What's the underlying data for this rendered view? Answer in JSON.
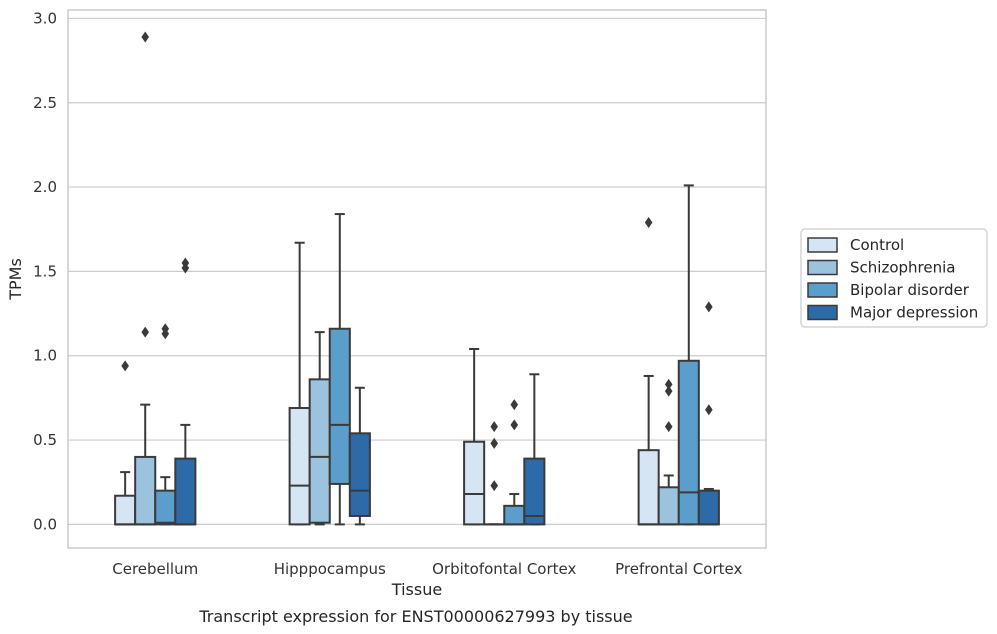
{
  "caption": "Transcript expression for ENST00000627993 by tissue",
  "chart_data": {
    "type": "box",
    "title": "",
    "xlabel": "Tissue",
    "ylabel": "TPMs",
    "ylim": [
      -0.14,
      3.05
    ],
    "yticks": [
      "0.0",
      "0.5",
      "1.0",
      "1.5",
      "2.0",
      "2.5",
      "3.0"
    ],
    "grid": true,
    "legend_position": "right",
    "categories": [
      "Cerebellum",
      "Hipppocampus",
      "Orbitofontal Cortex",
      "Prefrontal Cortex"
    ],
    "series": [
      {
        "name": "Control",
        "color": "#d6e5f4",
        "boxes": [
          {
            "whislo": 0.0,
            "q1": 0.0,
            "med": 0.0,
            "q3": 0.17,
            "whishi": 0.31,
            "fliers": [
              0.94
            ]
          },
          {
            "whislo": 0.0,
            "q1": 0.0,
            "med": 0.23,
            "q3": 0.69,
            "whishi": 1.67,
            "fliers": []
          },
          {
            "whislo": 0.0,
            "q1": 0.0,
            "med": 0.18,
            "q3": 0.49,
            "whishi": 1.04,
            "fliers": []
          },
          {
            "whislo": 0.0,
            "q1": 0.0,
            "med": 0.0,
            "q3": 0.44,
            "whishi": 0.88,
            "fliers": [
              1.79
            ]
          }
        ]
      },
      {
        "name": "Schizophrenia",
        "color": "#9cc3de",
        "boxes": [
          {
            "whislo": 0.0,
            "q1": 0.0,
            "med": 0.0,
            "q3": 0.4,
            "whishi": 0.71,
            "fliers": [
              1.14,
              2.89
            ]
          },
          {
            "whislo": 0.0,
            "q1": 0.01,
            "med": 0.4,
            "q3": 0.86,
            "whishi": 1.14,
            "fliers": []
          },
          {
            "whislo": 0.0,
            "q1": 0.0,
            "med": 0.0,
            "q3": 0.0,
            "whishi": 0.0,
            "fliers": [
              0.23,
              0.48,
              0.58
            ]
          },
          {
            "whislo": 0.0,
            "q1": 0.0,
            "med": 0.0,
            "q3": 0.22,
            "whishi": 0.29,
            "fliers": [
              0.58,
              0.79,
              0.83
            ]
          }
        ]
      },
      {
        "name": "Bipolar disorder",
        "color": "#5b9dcb",
        "boxes": [
          {
            "whislo": 0.0,
            "q1": 0.0,
            "med": 0.01,
            "q3": 0.2,
            "whishi": 0.28,
            "fliers": [
              1.13,
              1.16
            ]
          },
          {
            "whislo": 0.0,
            "q1": 0.24,
            "med": 0.59,
            "q3": 1.16,
            "whishi": 1.84,
            "fliers": []
          },
          {
            "whislo": 0.0,
            "q1": 0.0,
            "med": 0.0,
            "q3": 0.11,
            "whishi": 0.18,
            "fliers": [
              0.59,
              0.71
            ]
          },
          {
            "whislo": 0.0,
            "q1": 0.0,
            "med": 0.19,
            "q3": 0.97,
            "whishi": 2.01,
            "fliers": []
          }
        ]
      },
      {
        "name": "Major depression",
        "color": "#2c6ba8",
        "boxes": [
          {
            "whislo": 0.0,
            "q1": 0.0,
            "med": 0.0,
            "q3": 0.39,
            "whishi": 0.59,
            "fliers": [
              1.52,
              1.55
            ]
          },
          {
            "whislo": 0.0,
            "q1": 0.05,
            "med": 0.2,
            "q3": 0.54,
            "whishi": 0.81,
            "fliers": []
          },
          {
            "whislo": 0.0,
            "q1": 0.0,
            "med": 0.05,
            "q3": 0.39,
            "whishi": 0.89,
            "fliers": []
          },
          {
            "whislo": 0.0,
            "q1": 0.0,
            "med": 0.0,
            "q3": 0.2,
            "whishi": 0.21,
            "fliers": [
              0.68,
              1.29
            ]
          }
        ]
      }
    ]
  }
}
